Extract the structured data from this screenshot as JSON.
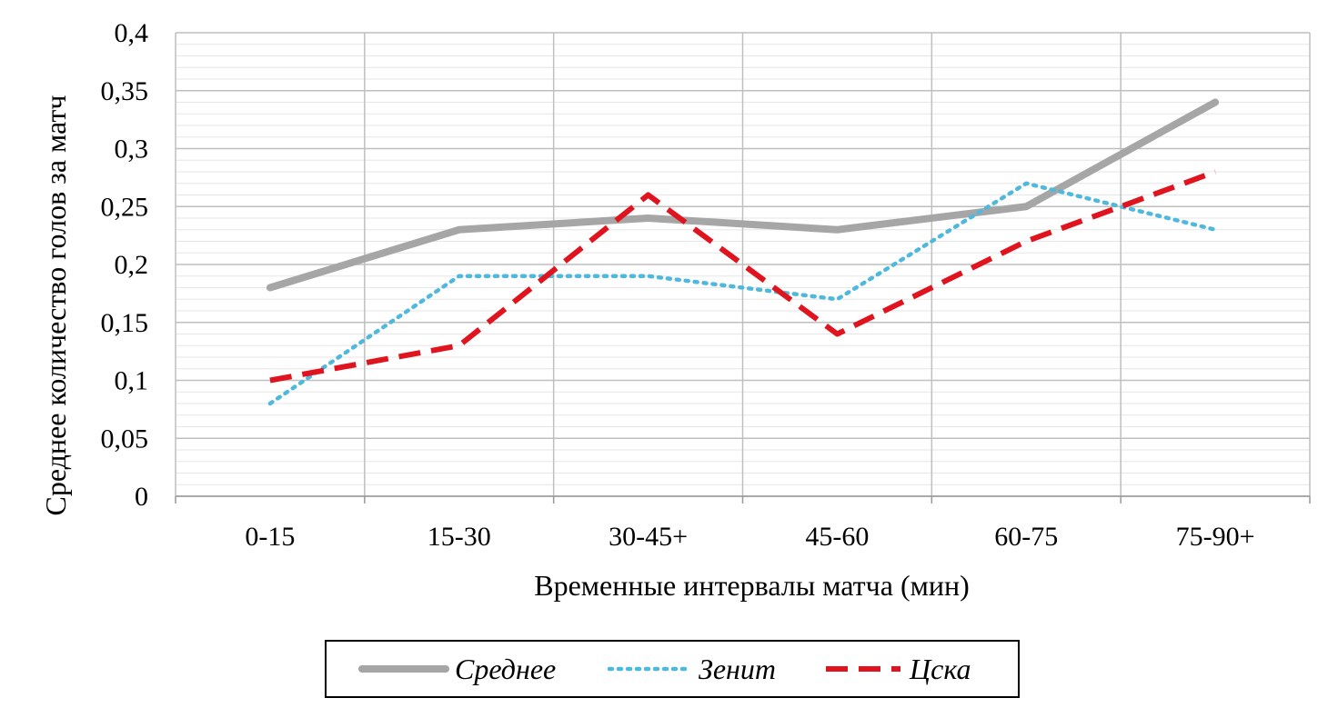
{
  "chart_data": {
    "type": "line",
    "categories": [
      "0-15",
      "15-30",
      "30-45+",
      "45-60",
      "60-75",
      "75-90+"
    ],
    "series": [
      {
        "name": "Среднее",
        "values": [
          0.18,
          0.23,
          0.24,
          0.23,
          0.25,
          0.34
        ],
        "color": "#a6a6a6",
        "style": "solid"
      },
      {
        "name": "Зенит",
        "values": [
          0.08,
          0.19,
          0.19,
          0.17,
          0.27,
          0.23
        ],
        "color": "#4fb8dd",
        "style": "dotted"
      },
      {
        "name": "Цска",
        "values": [
          0.1,
          0.13,
          0.26,
          0.14,
          0.22,
          0.28
        ],
        "color": "#e0141e",
        "style": "dashed"
      }
    ],
    "y_ticks": [
      "0",
      "0,05",
      "0,1",
      "0,15",
      "0,2",
      "0,25",
      "0,3",
      "0,35",
      "0,4"
    ],
    "ylim": [
      0,
      0.4
    ],
    "xlabel": "Временные интервалы матча (мин)",
    "ylabel": "Среднее количество голов за матч",
    "legend_position": "bottom",
    "grid": true
  }
}
